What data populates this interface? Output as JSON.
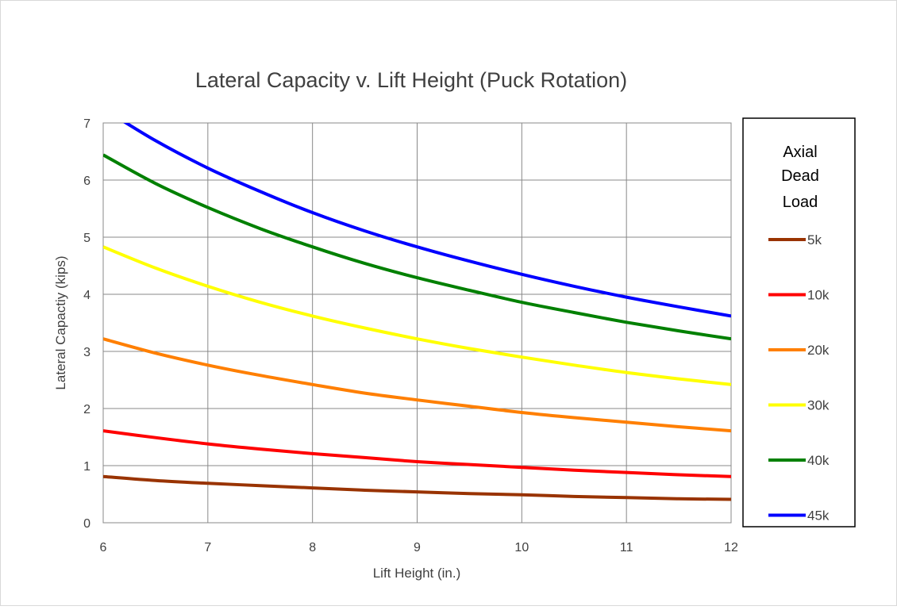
{
  "chart_data": {
    "type": "line",
    "title": "Lateral Capacity v. Lift Height (Puck Rotation)",
    "xlabel": "Lift Height (in.)",
    "ylabel": "Lateral Capactiy (kips)",
    "xlim": [
      6,
      12
    ],
    "ylim": [
      0,
      7
    ],
    "x_ticks": [
      "6",
      "7",
      "8",
      "9",
      "10",
      "11",
      "12"
    ],
    "y_ticks": [
      "0",
      "1",
      "2",
      "3",
      "4",
      "5",
      "6",
      "7"
    ],
    "grid": true,
    "legend": {
      "title_lines": [
        "Axial",
        "Dead",
        "Load"
      ],
      "placement": "right"
    },
    "x": [
      6,
      6.5,
      7,
      7.5,
      8,
      8.5,
      9,
      9.5,
      10,
      10.5,
      11,
      11.5,
      12
    ],
    "series": [
      {
        "name": "5k",
        "color": "#993300",
        "values": [
          0.81,
          0.74,
          0.69,
          0.65,
          0.61,
          0.57,
          0.54,
          0.51,
          0.49,
          0.46,
          0.44,
          0.42,
          0.41
        ]
      },
      {
        "name": "10k",
        "color": "#ff0000",
        "values": [
          1.61,
          1.49,
          1.38,
          1.29,
          1.21,
          1.14,
          1.07,
          1.02,
          0.97,
          0.92,
          0.88,
          0.84,
          0.81
        ]
      },
      {
        "name": "20k",
        "color": "#ff7f00",
        "values": [
          3.22,
          2.97,
          2.76,
          2.58,
          2.42,
          2.27,
          2.15,
          2.04,
          1.93,
          1.84,
          1.76,
          1.68,
          1.61
        ]
      },
      {
        "name": "30k",
        "color": "#ffff00",
        "values": [
          4.83,
          4.46,
          4.14,
          3.86,
          3.62,
          3.41,
          3.22,
          3.05,
          2.9,
          2.76,
          2.63,
          2.52,
          2.42
        ]
      },
      {
        "name": "40k",
        "color": "#008000",
        "values": [
          6.44,
          5.94,
          5.52,
          5.15,
          4.83,
          4.54,
          4.29,
          4.07,
          3.86,
          3.68,
          3.51,
          3.36,
          3.22
        ]
      },
      {
        "name": "45k",
        "color": "#0000ff",
        "values": [
          7.25,
          6.69,
          6.21,
          5.8,
          5.43,
          5.11,
          4.83,
          4.58,
          4.35,
          4.14,
          3.95,
          3.78,
          3.62
        ]
      }
    ]
  }
}
